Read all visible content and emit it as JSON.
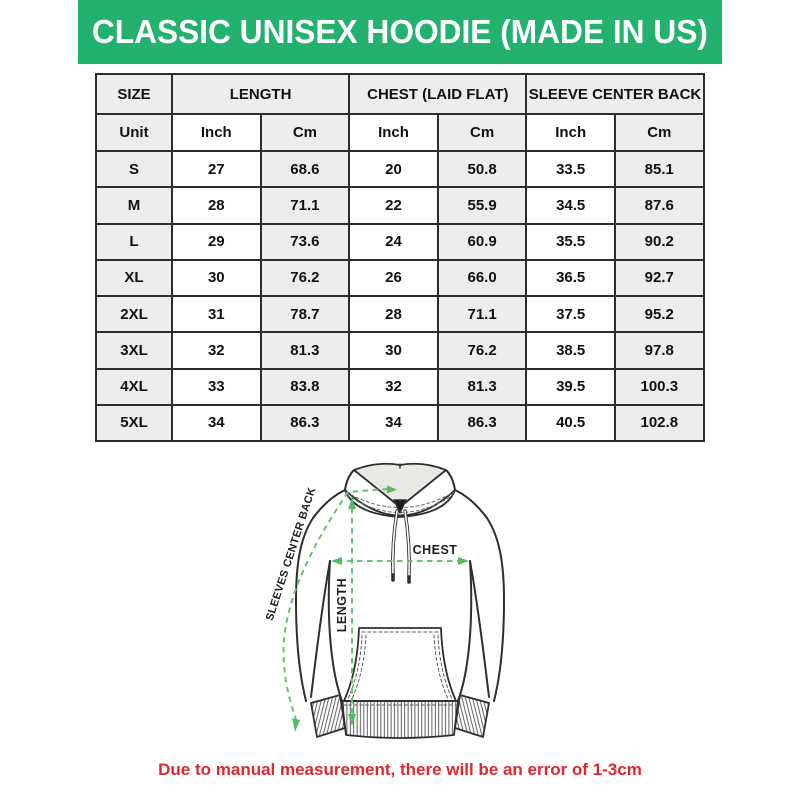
{
  "banner": {
    "title": "CLASSIC UNISEX HOODIE (MADE IN US)",
    "bg_color": "#23B26E",
    "text_color": "#FFFFFF"
  },
  "size_chart": {
    "column_groups": [
      {
        "label": "SIZE"
      },
      {
        "label": "LENGTH"
      },
      {
        "label": "CHEST (LAID FLAT)"
      },
      {
        "label": "SLEEVE CENTER BACK"
      }
    ],
    "unit_row": [
      "Unit",
      "Inch",
      "Cm",
      "Inch",
      "Cm",
      "Inch",
      "Cm"
    ],
    "rows": [
      {
        "size": "S",
        "values": [
          "27",
          "68.6",
          "20",
          "50.8",
          "33.5",
          "85.1"
        ]
      },
      {
        "size": "M",
        "values": [
          "28",
          "71.1",
          "22",
          "55.9",
          "34.5",
          "87.6"
        ]
      },
      {
        "size": "L",
        "values": [
          "29",
          "73.6",
          "24",
          "60.9",
          "35.5",
          "90.2"
        ]
      },
      {
        "size": "XL",
        "values": [
          "30",
          "76.2",
          "26",
          "66.0",
          "36.5",
          "92.7"
        ]
      },
      {
        "size": "2XL",
        "values": [
          "31",
          "78.7",
          "28",
          "71.1",
          "37.5",
          "95.2"
        ]
      },
      {
        "size": "3XL",
        "values": [
          "32",
          "81.3",
          "30",
          "76.2",
          "38.5",
          "97.8"
        ]
      },
      {
        "size": "4XL",
        "values": [
          "33",
          "83.8",
          "32",
          "81.3",
          "39.5",
          "100.3"
        ]
      },
      {
        "size": "5XL",
        "values": [
          "34",
          "86.3",
          "34",
          "86.3",
          "40.5",
          "102.8"
        ]
      }
    ],
    "cell_gray": "#EDEDED",
    "border_color": "#2d2d2d"
  },
  "diagram": {
    "labels": {
      "sleeve": "SLEEVES CENTER BACK",
      "chest": "CHEST",
      "length": "LENGTH"
    },
    "measure_line_color": "#68C072",
    "outline_color": "#2e2e2e"
  },
  "footer": {
    "note": "Due to manual measurement, there will be an error of 1-3cm",
    "color": "#E2262C"
  }
}
